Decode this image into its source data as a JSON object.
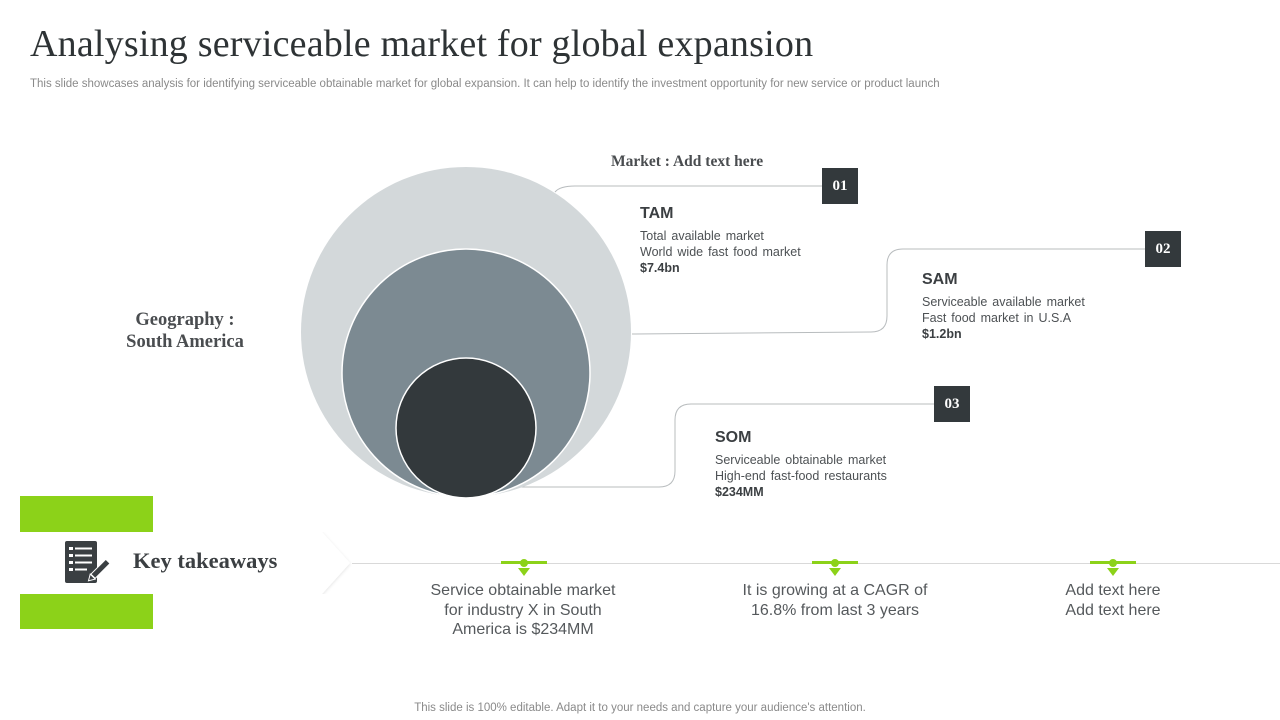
{
  "slide": {
    "title": "Analysing serviceable market for global expansion",
    "subtitle": "This slide showcases analysis for identifying serviceable obtainable market for global expansion. It can help to identify the investment opportunity for new service or product launch",
    "footer": "This slide is 100% editable. Adapt it to your needs and capture your audience's attention."
  },
  "diagram": {
    "market_label": "Market : Add text here",
    "geography_line1": "Geography :",
    "geography_line2": "South America",
    "tiers": [
      {
        "number": "01",
        "name": "TAM",
        "line1": "Total available market",
        "line2": "World wide fast food market",
        "value": "$7.4bn",
        "color": "#d3d8da"
      },
      {
        "number": "02",
        "name": "SAM",
        "line1": "Serviceable available market",
        "line2": "Fast food market in U.S.A",
        "value": "$1.2bn",
        "color": "#7c8a92"
      },
      {
        "number": "03",
        "name": "SOM",
        "line1": "Serviceable obtainable market",
        "line2": "High-end fast-food restaurants",
        "value": "$234MM",
        "color": "#33393c"
      }
    ]
  },
  "takeaways": {
    "heading": "Key takeaways",
    "icon": "checklist-pencil-icon",
    "accent_color": "#8cd219",
    "items": [
      {
        "line1": "Service obtainable market",
        "line2": "for industry X in South",
        "line3": "America is $234MM"
      },
      {
        "line1": "It is growing at a CAGR of",
        "line2": "16.8% from last 3 years"
      },
      {
        "line1": "Add text here",
        "line2": "Add text here"
      }
    ]
  }
}
